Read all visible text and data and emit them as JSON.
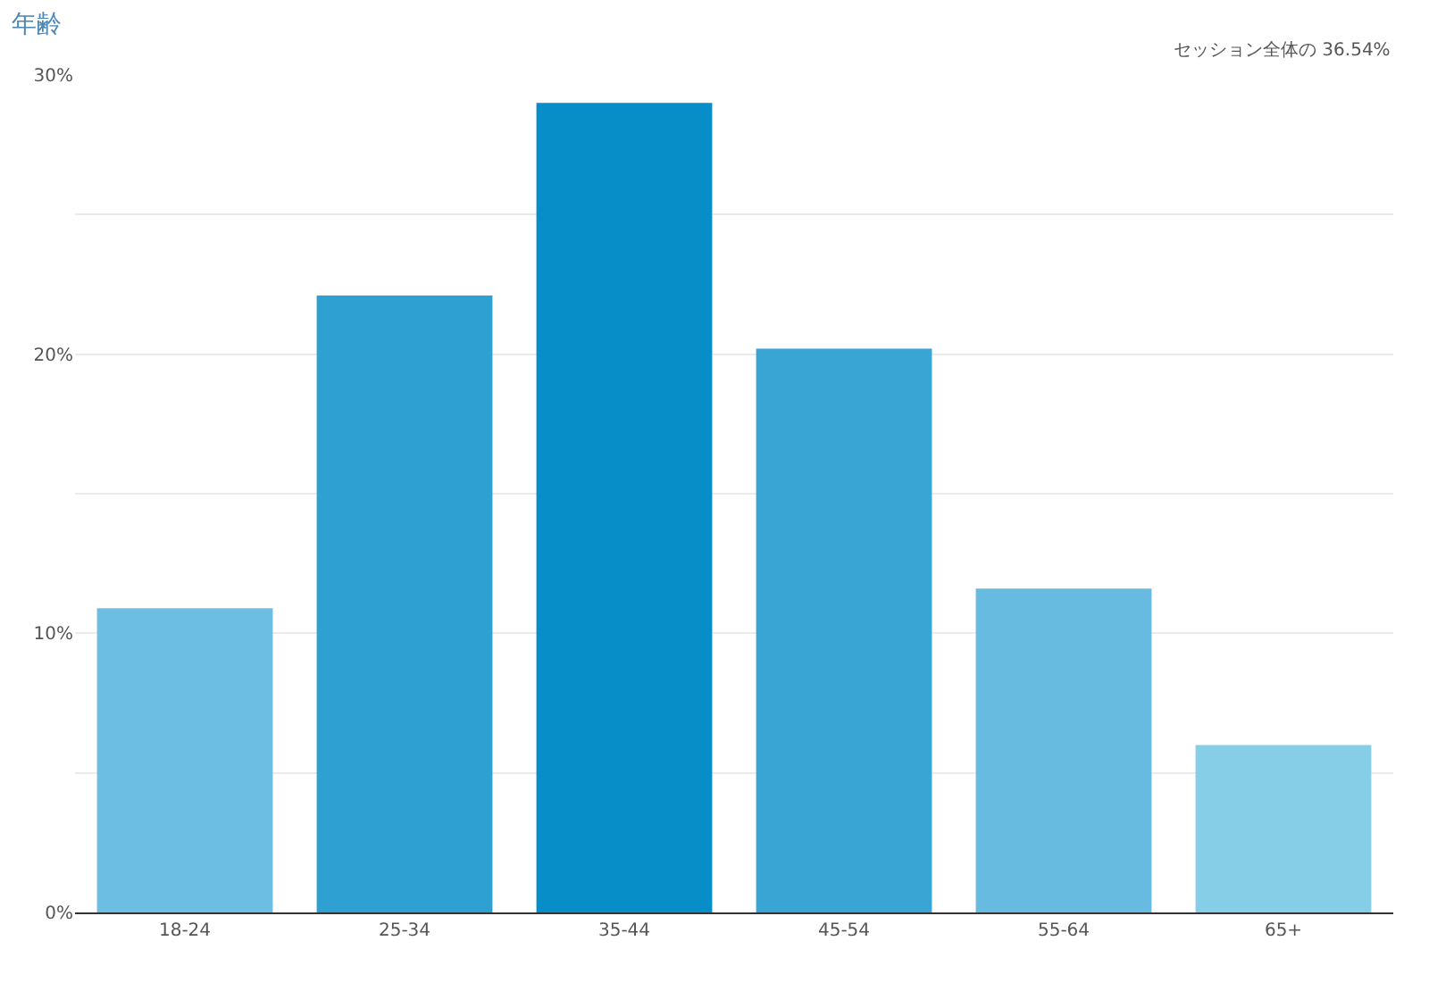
{
  "chart_data": {
    "type": "bar",
    "title": "年齢",
    "annotations": [
      "セッション全体の 36.54%"
    ],
    "categories": [
      "18-24",
      "25-34",
      "35-44",
      "45-54",
      "55-64",
      "65+"
    ],
    "values": [
      10.9,
      22.1,
      29.0,
      20.2,
      11.6,
      6.0
    ],
    "colors": [
      "#6cbfe3",
      "#2ea1d2",
      "#078dc7",
      "#38a5d5",
      "#67bbe1",
      "#86cde8"
    ],
    "ylim": [
      0,
      30
    ],
    "yticks": [
      {
        "value": 0,
        "label": "0%"
      },
      {
        "value": 5,
        "label": null
      },
      {
        "value": 10,
        "label": "10%"
      },
      {
        "value": 15,
        "label": null
      },
      {
        "value": 20,
        "label": "20%"
      },
      {
        "value": 25,
        "label": null
      },
      {
        "value": 30,
        "label": "30%"
      }
    ],
    "grid": "y"
  }
}
